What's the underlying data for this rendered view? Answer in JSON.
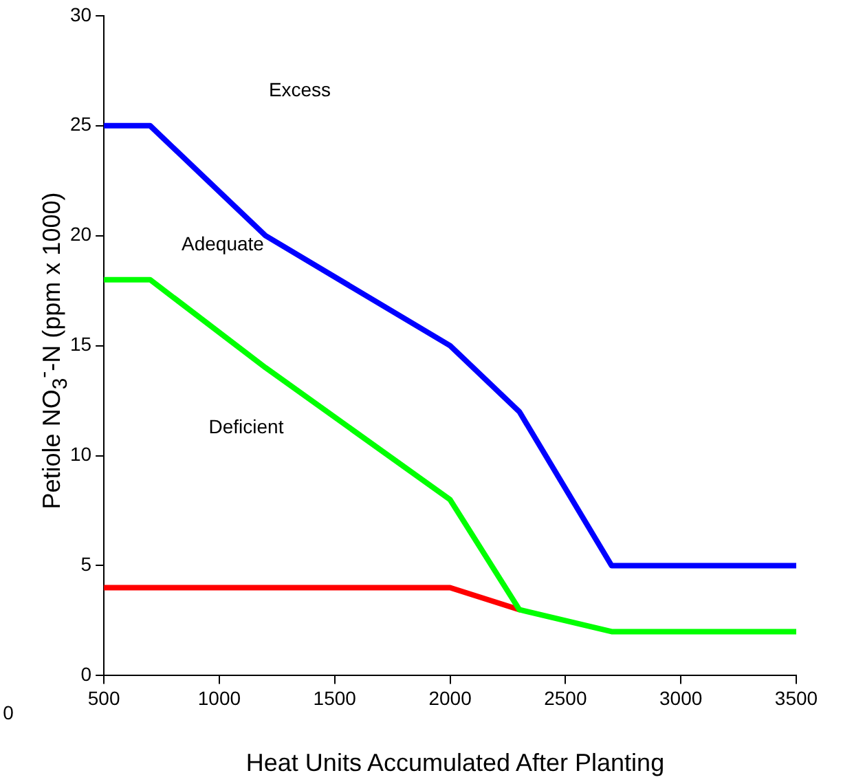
{
  "chart_data": {
    "type": "line",
    "xlabel": "Heat Units Accumulated After Planting",
    "ylabel": "Petiole NO$_{3}$$^{-}$-N (ppm x 1000)",
    "xlim": [
      500,
      3500
    ],
    "xticks": [
      500,
      1000,
      1500,
      2000,
      2500,
      3000,
      3500
    ],
    "ylim": [
      0,
      30
    ],
    "yticks": [
      0,
      5,
      10,
      15,
      20,
      25,
      30
    ],
    "grid": false,
    "legend": false,
    "marker": "none",
    "line_style": "solid",
    "series": [
      {
        "color": "#0000ff",
        "x": [
          500,
          700,
          1200,
          2000,
          2300,
          2700,
          3500
        ],
        "values": [
          25,
          25,
          20,
          15,
          12,
          5,
          5
        ]
      },
      {
        "color": "#00ff00",
        "x": [
          500,
          700,
          1200,
          2000,
          2300,
          2700,
          3500
        ],
        "values": [
          18,
          18,
          14,
          8,
          3,
          2,
          2
        ]
      },
      {
        "color": "#ff0000",
        "x": [
          500,
          2000,
          2300
        ],
        "values": [
          4,
          4,
          3
        ]
      }
    ],
    "annotations": [
      "Excess",
      "Adequate",
      "Deficient",
      "0"
    ]
  }
}
